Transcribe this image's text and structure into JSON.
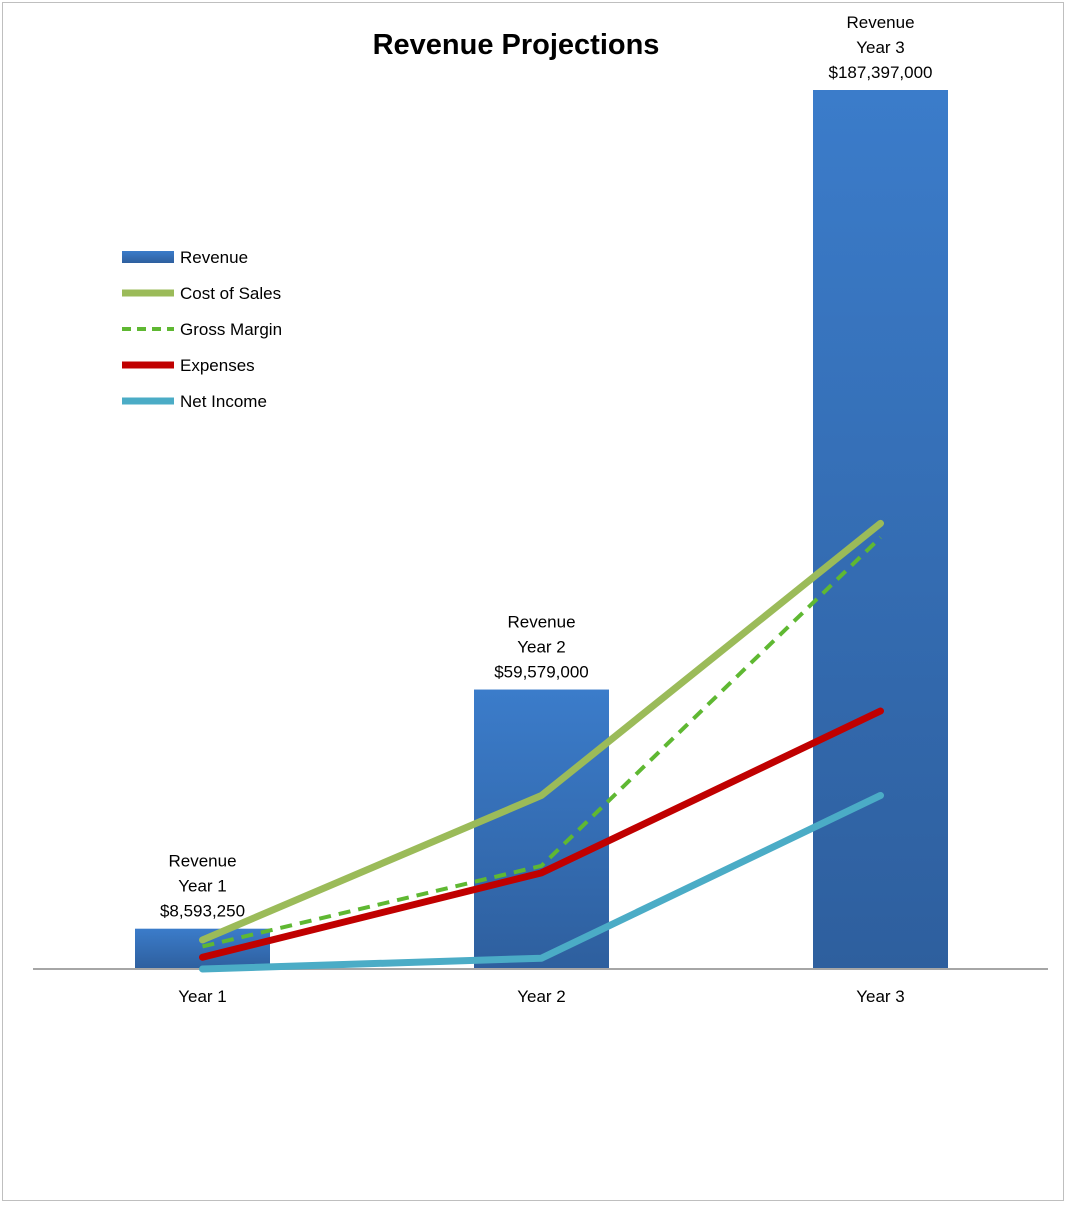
{
  "chart_data": {
    "type": "bar",
    "title": "Revenue Projections",
    "xlabel": "",
    "ylabel": "",
    "categories": [
      "Year 1",
      "Year 2",
      "Year 3"
    ],
    "ylim": [
      0,
      187397000
    ],
    "grid": false,
    "legend_position": "left",
    "series": [
      {
        "name": "Revenue",
        "kind": "bar",
        "color": "#3a75c2",
        "values": [
          8593250,
          59579000,
          187397000
        ],
        "data_labels": [
          [
            "Revenue",
            "Year 1",
            "$8,593,250"
          ],
          [
            "Revenue",
            "Year 2",
            "$59,579,000"
          ],
          [
            "Revenue",
            "Year 3",
            "$187,397,000"
          ]
        ]
      },
      {
        "name": "Cost of Sales",
        "kind": "line",
        "color": "#9bbb59",
        "dashed": false,
        "values": [
          6200000,
          37000000,
          95000000
        ]
      },
      {
        "name": "Gross Margin",
        "kind": "line",
        "color": "#5fb832",
        "dashed": true,
        "values": [
          4800000,
          22000000,
          92000000
        ]
      },
      {
        "name": "Expenses",
        "kind": "line",
        "color": "#c00000",
        "dashed": false,
        "values": [
          2500000,
          20500000,
          55000000
        ]
      },
      {
        "name": "Net Income",
        "kind": "line",
        "color": "#4bacc6",
        "dashed": false,
        "values": [
          0,
          2300000,
          37000000
        ]
      }
    ]
  }
}
